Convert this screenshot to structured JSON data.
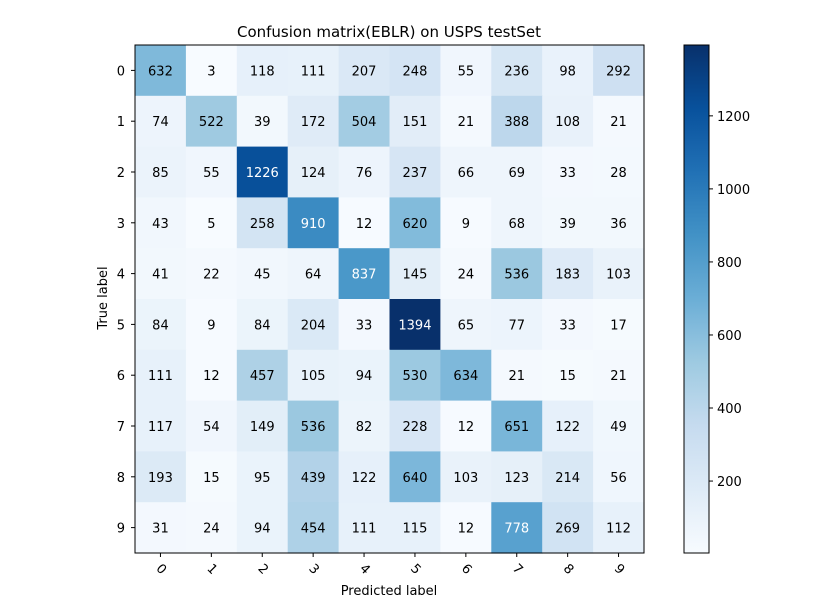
{
  "chart_data": {
    "type": "heatmap",
    "title": "Confusion matrix(EBLR) on USPS testSet",
    "xlabel": "Predicted label",
    "ylabel": "True label",
    "x_categories": [
      "0",
      "1",
      "2",
      "3",
      "4",
      "5",
      "6",
      "7",
      "8",
      "9"
    ],
    "y_categories": [
      "0",
      "1",
      "2",
      "3",
      "4",
      "5",
      "6",
      "7",
      "8",
      "9"
    ],
    "values": [
      [
        632,
        3,
        118,
        111,
        207,
        248,
        55,
        236,
        98,
        292
      ],
      [
        74,
        522,
        39,
        172,
        504,
        151,
        21,
        388,
        108,
        21
      ],
      [
        85,
        55,
        1226,
        124,
        76,
        237,
        66,
        69,
        33,
        28
      ],
      [
        43,
        5,
        258,
        910,
        12,
        620,
        9,
        68,
        39,
        36
      ],
      [
        41,
        22,
        45,
        64,
        837,
        145,
        24,
        536,
        183,
        103
      ],
      [
        84,
        9,
        84,
        204,
        33,
        1394,
        65,
        77,
        33,
        17
      ],
      [
        111,
        12,
        457,
        105,
        94,
        530,
        634,
        21,
        15,
        21
      ],
      [
        117,
        54,
        149,
        536,
        82,
        228,
        12,
        651,
        122,
        49
      ],
      [
        193,
        15,
        95,
        439,
        122,
        640,
        103,
        123,
        214,
        56
      ],
      [
        31,
        24,
        94,
        454,
        111,
        115,
        12,
        778,
        269,
        112
      ]
    ],
    "colormap": "Blues",
    "color_range": [
      3,
      1394
    ],
    "colorbar_ticks": [
      200,
      400,
      600,
      800,
      1000,
      1200
    ],
    "text_color_dark": "#000000",
    "text_color_light": "#ffffff",
    "x_tick_rotation_deg": 45
  }
}
